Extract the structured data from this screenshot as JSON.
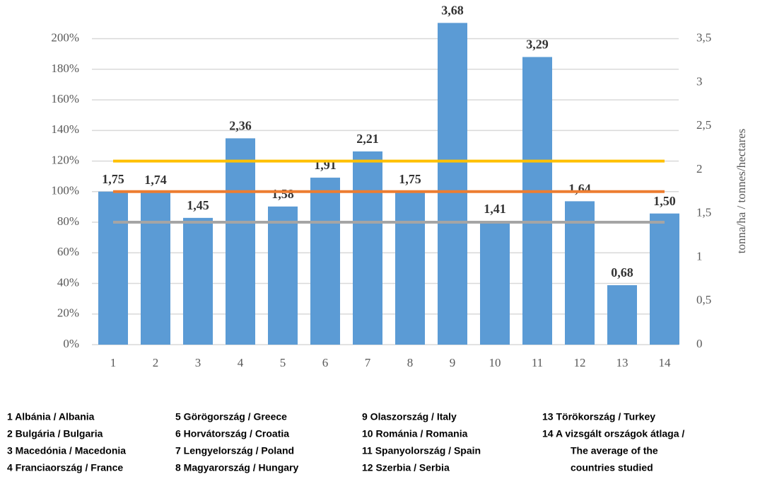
{
  "chart_data": {
    "type": "bar",
    "categories": [
      "1",
      "2",
      "3",
      "4",
      "5",
      "6",
      "7",
      "8",
      "9",
      "10",
      "11",
      "12",
      "13",
      "14"
    ],
    "series": [
      {
        "color": "#5b9bd5",
        "axis": "y2",
        "values": [
          1.75,
          1.74,
          1.45,
          2.36,
          1.58,
          1.91,
          2.21,
          1.75,
          3.68,
          1.41,
          3.29,
          1.64,
          0.68,
          1.5
        ],
        "value_labels": [
          "1,75",
          "1,74",
          "1,45",
          "2,36",
          "1,58",
          "1,91",
          "2,21",
          "1,75",
          "3,68",
          "1,41",
          "3,29",
          "1,64",
          "0,68",
          "1,50"
        ]
      }
    ],
    "reference_lines": [
      {
        "value": 120,
        "color": "#ffc000"
      },
      {
        "value": 100,
        "color": "#ed7d31"
      },
      {
        "value": 80,
        "color": "#a5a5a5"
      }
    ],
    "ylim": [
      0,
      210
    ],
    "yticks": [
      {
        "value": 0,
        "label": "0%"
      },
      {
        "value": 20,
        "label": "20%"
      },
      {
        "value": 40,
        "label": "40%"
      },
      {
        "value": 60,
        "label": "60%"
      },
      {
        "value": 80,
        "label": "80%"
      },
      {
        "value": 100,
        "label": "100%"
      },
      {
        "value": 120,
        "label": "120%"
      },
      {
        "value": 140,
        "label": "140%"
      },
      {
        "value": 160,
        "label": "160%"
      },
      {
        "value": 180,
        "label": "180%"
      },
      {
        "value": 200,
        "label": "200%"
      }
    ],
    "y2lim": [
      0,
      3.675
    ],
    "y2ticks": [
      0,
      {
        "value": 0.5,
        "label": "0,5"
      },
      1,
      {
        "value": 1.5,
        "label": "1,5"
      },
      2,
      {
        "value": 2.5,
        "label": "2,5"
      },
      3,
      {
        "value": 3.5,
        "label": "3,5"
      }
    ],
    "y2label": "tonna/ha  /  tonnes/hectares",
    "grid": true,
    "legend_notes": [
      [
        "1 Albánia / Albania",
        "2 Bulgária / Bulgaria",
        "3 Macedónia / Macedonia",
        "4 Franciaország / France"
      ],
      [
        "5 Görögország / Greece",
        "6 Horvátország / Croatia",
        "7 Lengyelország / Poland",
        "8 Magyarország / Hungary"
      ],
      [
        "9 Olaszország / Italy",
        "10 Románia / Romania",
        "11 Spanyolország / Spain",
        "12 Szerbia / Serbia"
      ],
      [
        "13 Törökország / Turkey",
        "14 A vizsgált országok átlaga /",
        "The average of the",
        "countries studied"
      ]
    ]
  }
}
